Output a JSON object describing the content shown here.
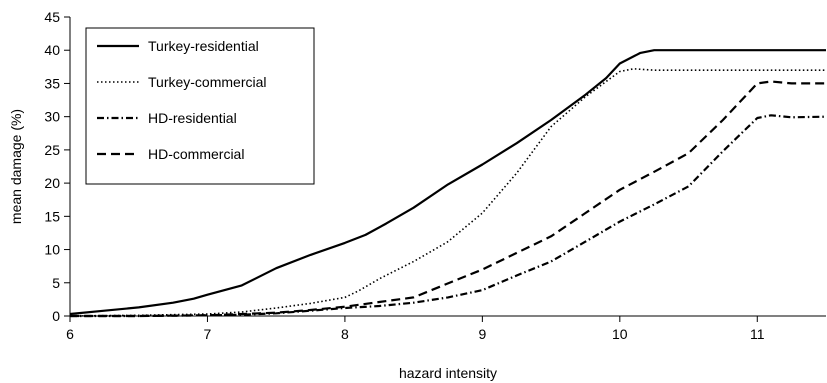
{
  "chart_data": {
    "type": "line",
    "title": "",
    "xlabel": "hazard intensity",
    "ylabel": "mean damage (%)",
    "xlim": [
      6,
      11.5
    ],
    "ylim": [
      0,
      45
    ],
    "xticks": [
      6,
      7,
      8,
      9,
      10,
      11
    ],
    "yticks": [
      0,
      5,
      10,
      15,
      20,
      25,
      30,
      35,
      40,
      45
    ],
    "grid": false,
    "legend_position": "top-left",
    "series": [
      {
        "name": "Turkey-residential",
        "style": "solid",
        "color": "#000000",
        "x": [
          6.0,
          6.25,
          6.5,
          6.75,
          6.9,
          7.0,
          7.25,
          7.5,
          7.75,
          8.0,
          8.15,
          8.3,
          8.5,
          8.75,
          9.0,
          9.25,
          9.5,
          9.75,
          9.9,
          10.0,
          10.15,
          10.25,
          10.5,
          11.0,
          11.5
        ],
        "values": [
          0.3,
          0.8,
          1.3,
          2.0,
          2.6,
          3.2,
          4.6,
          7.2,
          9.2,
          11.0,
          12.2,
          13.9,
          16.3,
          19.8,
          22.8,
          26.0,
          29.5,
          33.3,
          35.8,
          38.0,
          39.6,
          40.0,
          40.0,
          40.0,
          40.0
        ]
      },
      {
        "name": "Turkey-commercial",
        "style": "dotted",
        "color": "#000000",
        "x": [
          6.0,
          6.5,
          7.0,
          7.25,
          7.5,
          7.75,
          8.0,
          8.1,
          8.25,
          8.5,
          8.75,
          9.0,
          9.25,
          9.5,
          9.75,
          9.9,
          10.0,
          10.1,
          10.25,
          10.5,
          11.0,
          11.5
        ],
        "values": [
          0.0,
          0.1,
          0.3,
          0.6,
          1.2,
          1.9,
          2.8,
          3.8,
          5.6,
          8.2,
          11.2,
          15.5,
          21.5,
          28.5,
          33.0,
          35.3,
          36.8,
          37.2,
          37.0,
          37.0,
          37.0,
          37.0
        ]
      },
      {
        "name": "HD-residential",
        "style": "dashdot",
        "color": "#000000",
        "x": [
          6.0,
          6.5,
          7.0,
          7.25,
          7.5,
          7.75,
          8.0,
          8.25,
          8.5,
          8.75,
          9.0,
          9.25,
          9.5,
          9.75,
          10.0,
          10.25,
          10.5,
          10.75,
          11.0,
          11.1,
          11.25,
          11.5
        ],
        "values": [
          0.0,
          0.0,
          0.1,
          0.2,
          0.4,
          0.8,
          1.2,
          1.5,
          2.0,
          2.8,
          3.9,
          6.1,
          8.2,
          11.2,
          14.2,
          16.8,
          19.5,
          24.8,
          29.8,
          30.2,
          29.9,
          30.0
        ]
      },
      {
        "name": "HD-commercial",
        "style": "dashed",
        "color": "#000000",
        "x": [
          6.0,
          6.5,
          7.0,
          7.25,
          7.5,
          7.75,
          8.0,
          8.25,
          8.5,
          8.75,
          9.0,
          9.25,
          9.5,
          9.75,
          10.0,
          10.25,
          10.5,
          10.75,
          11.0,
          11.1,
          11.25,
          11.5
        ],
        "values": [
          0.0,
          0.0,
          0.1,
          0.3,
          0.5,
          0.9,
          1.4,
          2.1,
          2.8,
          4.9,
          7.0,
          9.5,
          12.0,
          15.5,
          19.0,
          21.7,
          24.5,
          29.5,
          35.0,
          35.3,
          35.0,
          35.0
        ]
      }
    ]
  }
}
